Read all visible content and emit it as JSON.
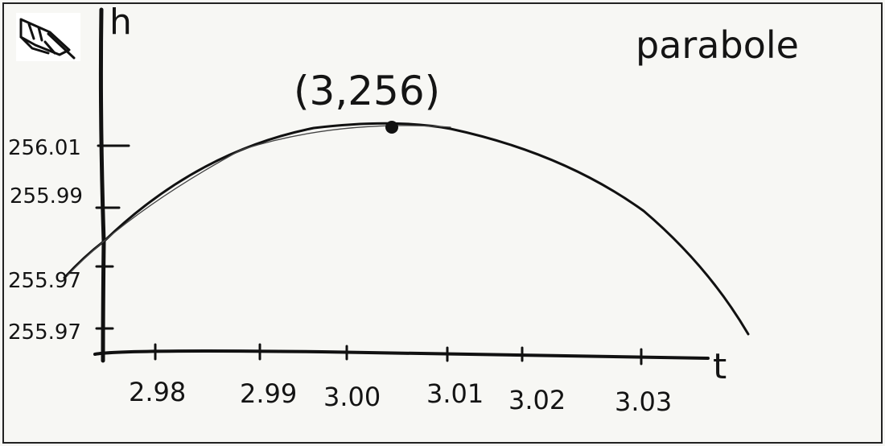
{
  "title": "parabole",
  "axes": {
    "x_label": "t",
    "y_label": "h"
  },
  "vertex_label": "(3,256)",
  "y_ticks": [
    "256.01",
    "255.99",
    "255.97",
    "255.97"
  ],
  "x_ticks": [
    "2.98",
    "2.99",
    "3.00",
    "3.01",
    "3.02",
    "3.03"
  ],
  "colors": {
    "ink": "#141414",
    "paper": "#f7f7f4"
  },
  "icon": "pencil-hand-icon"
}
